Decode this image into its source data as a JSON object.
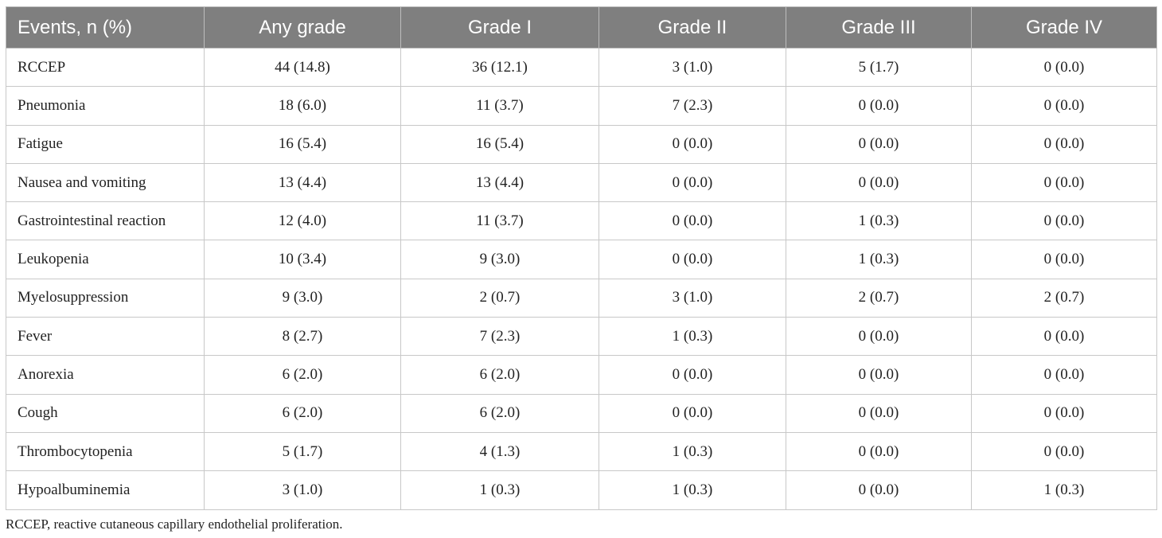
{
  "table": {
    "header": [
      "Events, n (%)",
      "Any grade",
      "Grade I",
      "Grade II",
      "Grade III",
      "Grade IV"
    ],
    "rows": [
      [
        "RCCEP",
        "44 (14.8)",
        "36 (12.1)",
        "3 (1.0)",
        "5 (1.7)",
        "0 (0.0)"
      ],
      [
        "Pneumonia",
        "18 (6.0)",
        "11 (3.7)",
        "7 (2.3)",
        "0 (0.0)",
        "0 (0.0)"
      ],
      [
        "Fatigue",
        "16 (5.4)",
        "16 (5.4)",
        "0 (0.0)",
        "0 (0.0)",
        "0 (0.0)"
      ],
      [
        "Nausea and vomiting",
        "13 (4.4)",
        "13 (4.4)",
        "0 (0.0)",
        "0 (0.0)",
        "0 (0.0)"
      ],
      [
        "Gastrointestinal reaction",
        "12 (4.0)",
        "11 (3.7)",
        "0 (0.0)",
        "1 (0.3)",
        "0 (0.0)"
      ],
      [
        "Leukopenia",
        "10 (3.4)",
        "9 (3.0)",
        "0 (0.0)",
        "1 (0.3)",
        "0 (0.0)"
      ],
      [
        "Myelosuppression",
        "9 (3.0)",
        "2 (0.7)",
        "3 (1.0)",
        "2 (0.7)",
        "2 (0.7)"
      ],
      [
        "Fever",
        "8 (2.7)",
        "7 (2.3)",
        "1 (0.3)",
        "0 (0.0)",
        "0 (0.0)"
      ],
      [
        "Anorexia",
        "6 (2.0)",
        "6 (2.0)",
        "0 (0.0)",
        "0 (0.0)",
        "0 (0.0)"
      ],
      [
        "Cough",
        "6 (2.0)",
        "6 (2.0)",
        "0 (0.0)",
        "0 (0.0)",
        "0 (0.0)"
      ],
      [
        "Thrombocytopenia",
        "5 (1.7)",
        "4 (1.3)",
        "1 (0.3)",
        "0 (0.0)",
        "0 (0.0)"
      ],
      [
        "Hypoalbuminemia",
        "3 (1.0)",
        "1 (0.3)",
        "1 (0.3)",
        "0 (0.0)",
        "1 (0.3)"
      ]
    ]
  },
  "footnote": "RCCEP, reactive cutaneous capillary endothelial proliferation."
}
